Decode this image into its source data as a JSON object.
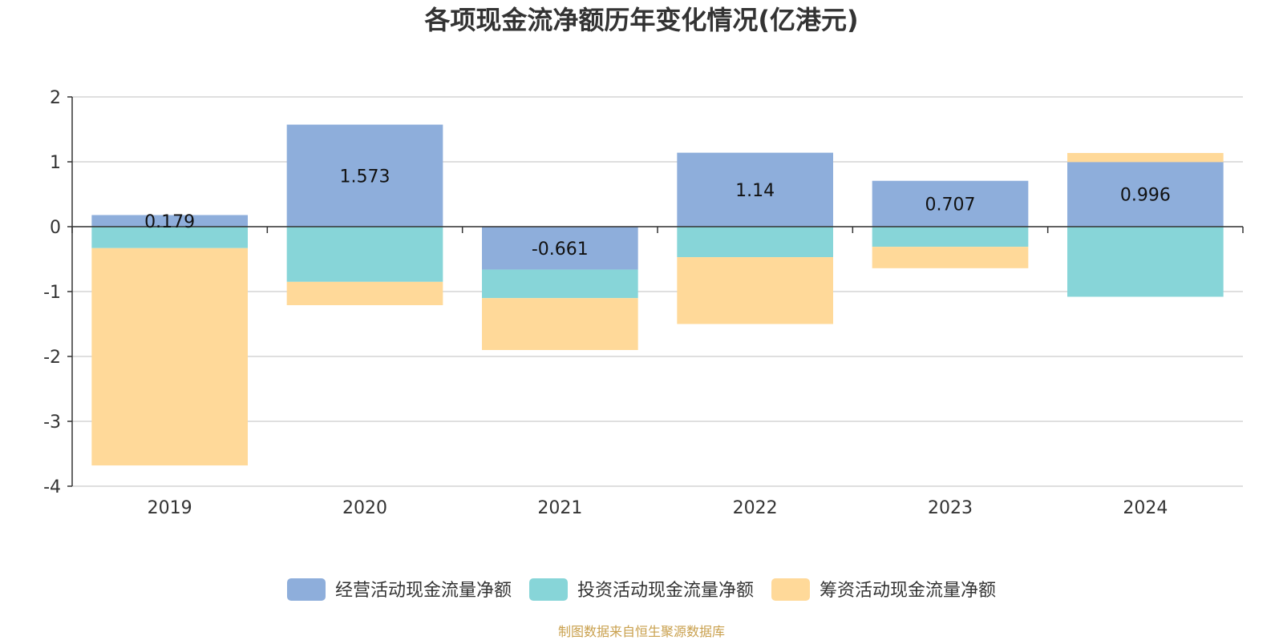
{
  "chart_data": {
    "type": "bar",
    "stacked": true,
    "title": "各项现金流净额历年变化情况(亿港元)",
    "xlabel": "",
    "ylabel": "",
    "categories": [
      "2019",
      "2020",
      "2021",
      "2022",
      "2023",
      "2024"
    ],
    "ylim": [
      -4,
      2
    ],
    "yticks": [
      2,
      1,
      0,
      -1,
      -2,
      -3,
      -4
    ],
    "grid": true,
    "legend_position": "bottom",
    "series": [
      {
        "name": "经营活动现金流量净额",
        "color": "#8eaedb",
        "values": [
          0.179,
          1.573,
          -0.661,
          1.14,
          0.707,
          0.996
        ],
        "value_labels": [
          "0.179",
          "1.573",
          "-0.661",
          "1.14",
          "0.707",
          "0.996"
        ]
      },
      {
        "name": "投资活动现金流量净额",
        "color": "#87d5d8",
        "values": [
          -0.33,
          -0.85,
          -0.44,
          -0.47,
          -0.31,
          -1.08
        ]
      },
      {
        "name": "筹资活动现金流量净额",
        "color": "#ffd999",
        "values": [
          -3.35,
          -0.36,
          -0.8,
          -1.03,
          -0.33,
          0.14
        ]
      }
    ],
    "source_note": "制图数据来自恒生聚源数据库"
  }
}
